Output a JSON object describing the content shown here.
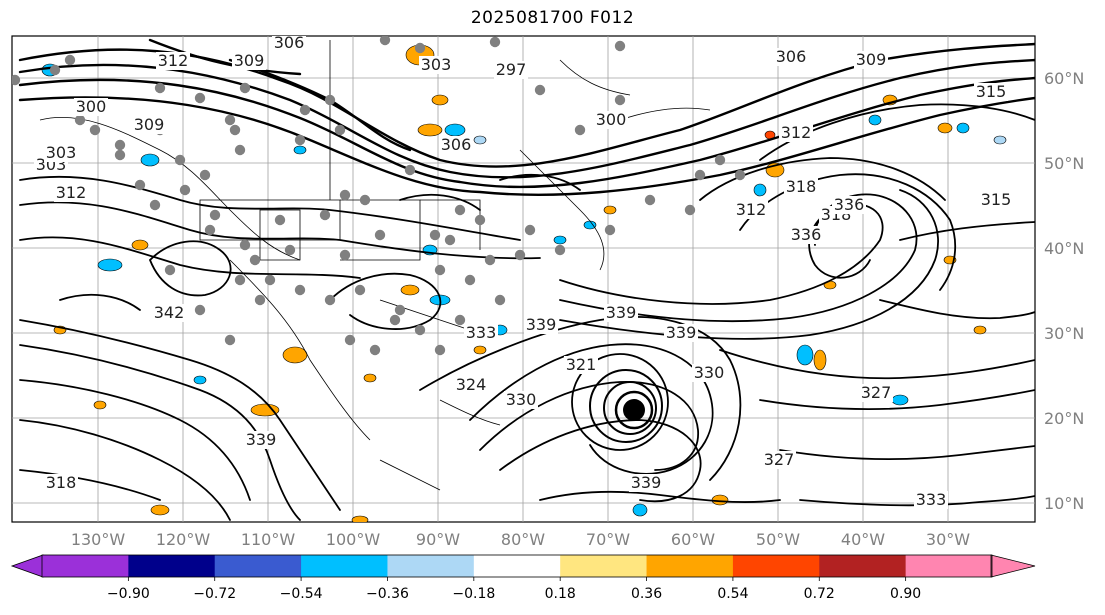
{
  "title": "2025081700 F012",
  "map": {
    "lat_labels": [
      "60°N",
      "50°N",
      "40°N",
      "30°N",
      "20°N",
      "10°N"
    ],
    "lon_labels": [
      "130°W",
      "120°W",
      "110°W",
      "100°W",
      "90°W",
      "80°W",
      "70°W",
      "60°W",
      "50°W",
      "40°W",
      "30°W"
    ],
    "contour_labels": [
      "306",
      "312",
      "309",
      "303",
      "300",
      "309",
      "303",
      "312",
      "306",
      "297",
      "303",
      "306",
      "300",
      "309",
      "315",
      "312",
      "315",
      "318",
      "312",
      "318",
      "327",
      "336",
      "333",
      "339",
      "339",
      "327",
      "330",
      "339",
      "339",
      "318",
      "333",
      "342",
      "339",
      "330",
      "321",
      "324",
      "336"
    ],
    "colors": {
      "land_line": "#000000",
      "grid_line": "#999999",
      "station_dot": "#808080",
      "cyclone_core": "#000000"
    }
  },
  "colorbar": {
    "ticks": [
      "−0.90",
      "−0.72",
      "−0.54",
      "−0.36",
      "−0.18",
      "0.18",
      "0.36",
      "0.54",
      "0.72",
      "0.90"
    ],
    "colors": [
      "#9b30d9",
      "#00008b",
      "#3a5bd0",
      "#00bfff",
      "#add8f5",
      "#ffffff",
      "#ffe680",
      "#ffa500",
      "#ff4500",
      "#b22222",
      "#ff85b0"
    ]
  }
}
